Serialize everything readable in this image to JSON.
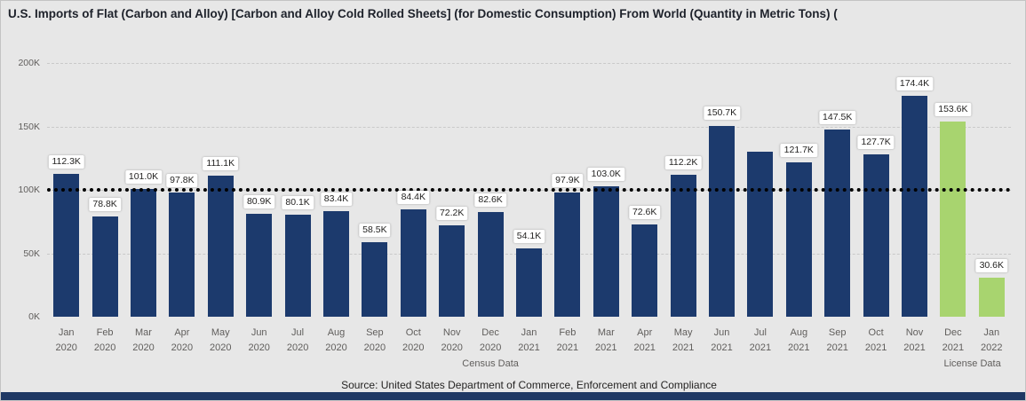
{
  "chart_data": {
    "type": "bar",
    "title": "U.S. Imports of Flat (Carbon and Alloy) [Carbon and Alloy Cold Rolled Sheets]  (for Domestic Consumption) From World  (Quantity in Metric Tons) (",
    "xlabel": "",
    "ylabel": "",
    "value_suffix": "K",
    "ylim": [
      0,
      200
    ],
    "yticks": [
      {
        "value": 0,
        "label": "0K"
      },
      {
        "value": 50,
        "label": "50K"
      },
      {
        "value": 100,
        "label": "100K"
      },
      {
        "value": 150,
        "label": "150K"
      },
      {
        "value": 200,
        "label": "200K"
      }
    ],
    "categories": [
      "Jan 2020",
      "Feb 2020",
      "Mar 2020",
      "Apr 2020",
      "May 2020",
      "Jun 2020",
      "Jul 2020",
      "Aug 2020",
      "Sep 2020",
      "Oct 2020",
      "Nov 2020",
      "Dec 2020",
      "Jan 2021",
      "Feb 2021",
      "Mar 2021",
      "Apr 2021",
      "May 2021",
      "Jun 2021",
      "Jul 2021",
      "Aug 2021",
      "Sep 2021",
      "Oct 2021",
      "Nov 2021",
      "Dec 2021",
      "Jan 2022"
    ],
    "values": [
      112.3,
      78.8,
      101.0,
      97.8,
      111.1,
      80.9,
      80.1,
      83.4,
      58.5,
      84.4,
      72.2,
      82.6,
      54.1,
      97.9,
      103.0,
      72.6,
      112.2,
      150.7,
      130.0,
      121.7,
      147.5,
      127.7,
      174.4,
      153.6,
      30.6
    ],
    "data_labels": [
      "112.3K",
      "78.8K",
      "101.0K",
      "97.8K",
      "111.1K",
      "80.9K",
      "80.1K",
      "83.4K",
      "58.5K",
      "84.4K",
      "72.2K",
      "82.6K",
      "54.1K",
      "97.9K",
      "103.0K",
      "72.6K",
      "112.2K",
      "150.7K",
      "",
      "121.7K",
      "147.5K",
      "127.7K",
      "174.4K",
      "153.6K",
      "30.6K"
    ],
    "groups": [
      {
        "label": "Census Data",
        "start": 0,
        "end": 22,
        "color": "#1C3A6D"
      },
      {
        "label": "License Data",
        "start": 23,
        "end": 24,
        "color": "#A8D46F"
      }
    ],
    "reference_line": {
      "value": 100,
      "color": "#000000",
      "style": "dotted"
    },
    "grid": "dashed-horizontal",
    "legend_position": "none",
    "source": "Source: United States Department of Commerce, Enforcement and Compliance",
    "accent_bar_color": "#1F3864"
  }
}
